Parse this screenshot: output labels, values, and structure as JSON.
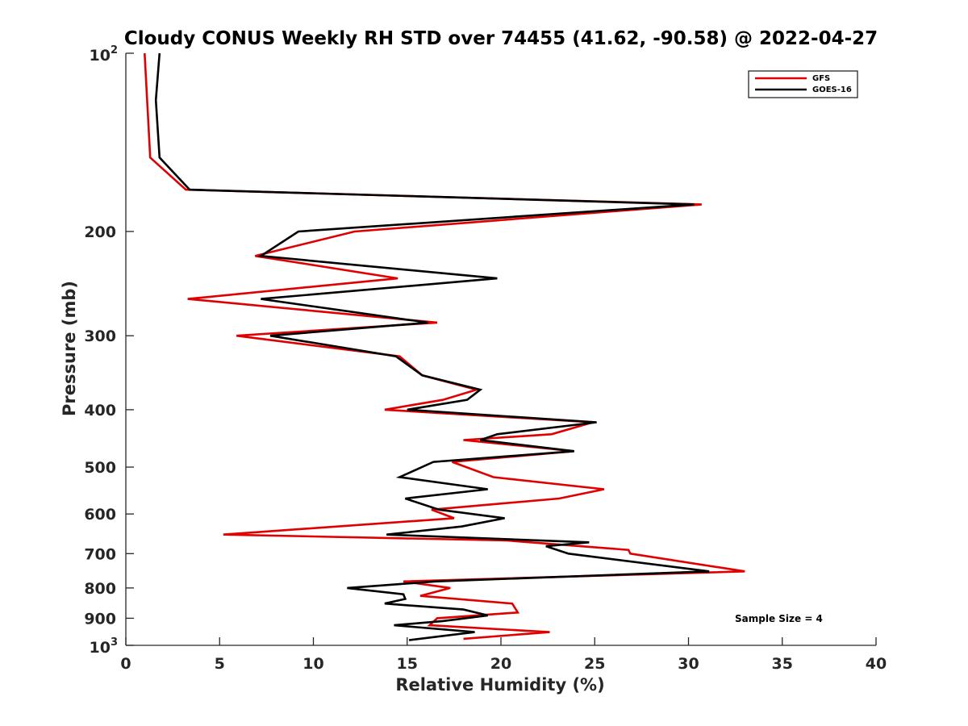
{
  "chart_data": {
    "type": "line",
    "title": "Cloudy CONUS Weekly RH STD over 74455 (41.62, -90.58) @ 2022-04-27",
    "xlabel": "Relative Humidity (%)",
    "ylabel": "Pressure (mb)",
    "xlim": [
      0,
      40
    ],
    "ylim": [
      100,
      1000
    ],
    "y_scale": "log",
    "y_reversed": true,
    "x_ticks": [
      {
        "value": 0,
        "label": "0"
      },
      {
        "value": 5,
        "label": "5"
      },
      {
        "value": 10,
        "label": "10"
      },
      {
        "value": 15,
        "label": "15"
      },
      {
        "value": 20,
        "label": "20"
      },
      {
        "value": 25,
        "label": "25"
      },
      {
        "value": 30,
        "label": "30"
      },
      {
        "value": 35,
        "label": "35"
      },
      {
        "value": 40,
        "label": "40"
      }
    ],
    "y_ticks": [
      {
        "value": 100,
        "base": "10",
        "exp": "2"
      },
      {
        "value": 200,
        "base": "200",
        "exp": ""
      },
      {
        "value": 300,
        "base": "300",
        "exp": ""
      },
      {
        "value": 400,
        "base": "400",
        "exp": ""
      },
      {
        "value": 500,
        "base": "500",
        "exp": ""
      },
      {
        "value": 600,
        "base": "600",
        "exp": ""
      },
      {
        "value": 700,
        "base": "700",
        "exp": ""
      },
      {
        "value": 800,
        "base": "800",
        "exp": ""
      },
      {
        "value": 900,
        "base": "900",
        "exp": ""
      },
      {
        "value": 1000,
        "base": "10",
        "exp": "3"
      }
    ],
    "grid": false,
    "legend_position": "top-right",
    "series": [
      {
        "name": "GFS",
        "color": "#e00000",
        "x": [
          1.0,
          1.3,
          3.2,
          30.7,
          12.2,
          6.9,
          14.5,
          3.3,
          16.6,
          5.9,
          14.6,
          15.8,
          18.7,
          16.9,
          13.8,
          24.9,
          22.7,
          18.0,
          23.9,
          17.4,
          19.6,
          25.5,
          23.1,
          16.3,
          17.5,
          5.2,
          20.3,
          26.8,
          26.9,
          33.0,
          14.8,
          17.3,
          15.7,
          20.6,
          20.9,
          16.6,
          16.2,
          22.6,
          18.0
        ],
        "y": [
          100,
          150,
          170,
          180,
          200,
          220,
          240,
          260,
          285,
          300,
          325,
          350,
          370,
          385,
          400,
          420,
          440,
          450,
          470,
          490,
          520,
          545,
          565,
          590,
          610,
          650,
          665,
          690,
          700,
          750,
          780,
          800,
          825,
          850,
          880,
          900,
          925,
          950,
          975
        ]
      },
      {
        "name": "GOES-16",
        "color": "#000000",
        "x": [
          1.8,
          1.6,
          1.8,
          3.4,
          30.3,
          9.2,
          7.2,
          19.8,
          7.2,
          16.1,
          7.7,
          14.4,
          15.8,
          18.9,
          18.2,
          15.0,
          25.1,
          19.8,
          18.9,
          23.9,
          16.4,
          14.6,
          19.3,
          14.9,
          16.7,
          20.2,
          17.9,
          13.9,
          24.7,
          22.4,
          23.6,
          31.1,
          16.5,
          11.8,
          14.8,
          14.9,
          13.8,
          18.0,
          19.3,
          16.9,
          14.3,
          18.6,
          15.1
        ],
        "y": [
          100,
          120,
          150,
          170,
          180,
          200,
          220,
          240,
          260,
          285,
          300,
          325,
          350,
          370,
          385,
          400,
          420,
          440,
          450,
          470,
          490,
          520,
          545,
          565,
          590,
          610,
          630,
          650,
          670,
          680,
          700,
          750,
          780,
          800,
          820,
          835,
          850,
          870,
          890,
          910,
          925,
          950,
          980
        ]
      }
    ],
    "annotations": [
      {
        "text": "Sample Size = 4"
      }
    ]
  }
}
